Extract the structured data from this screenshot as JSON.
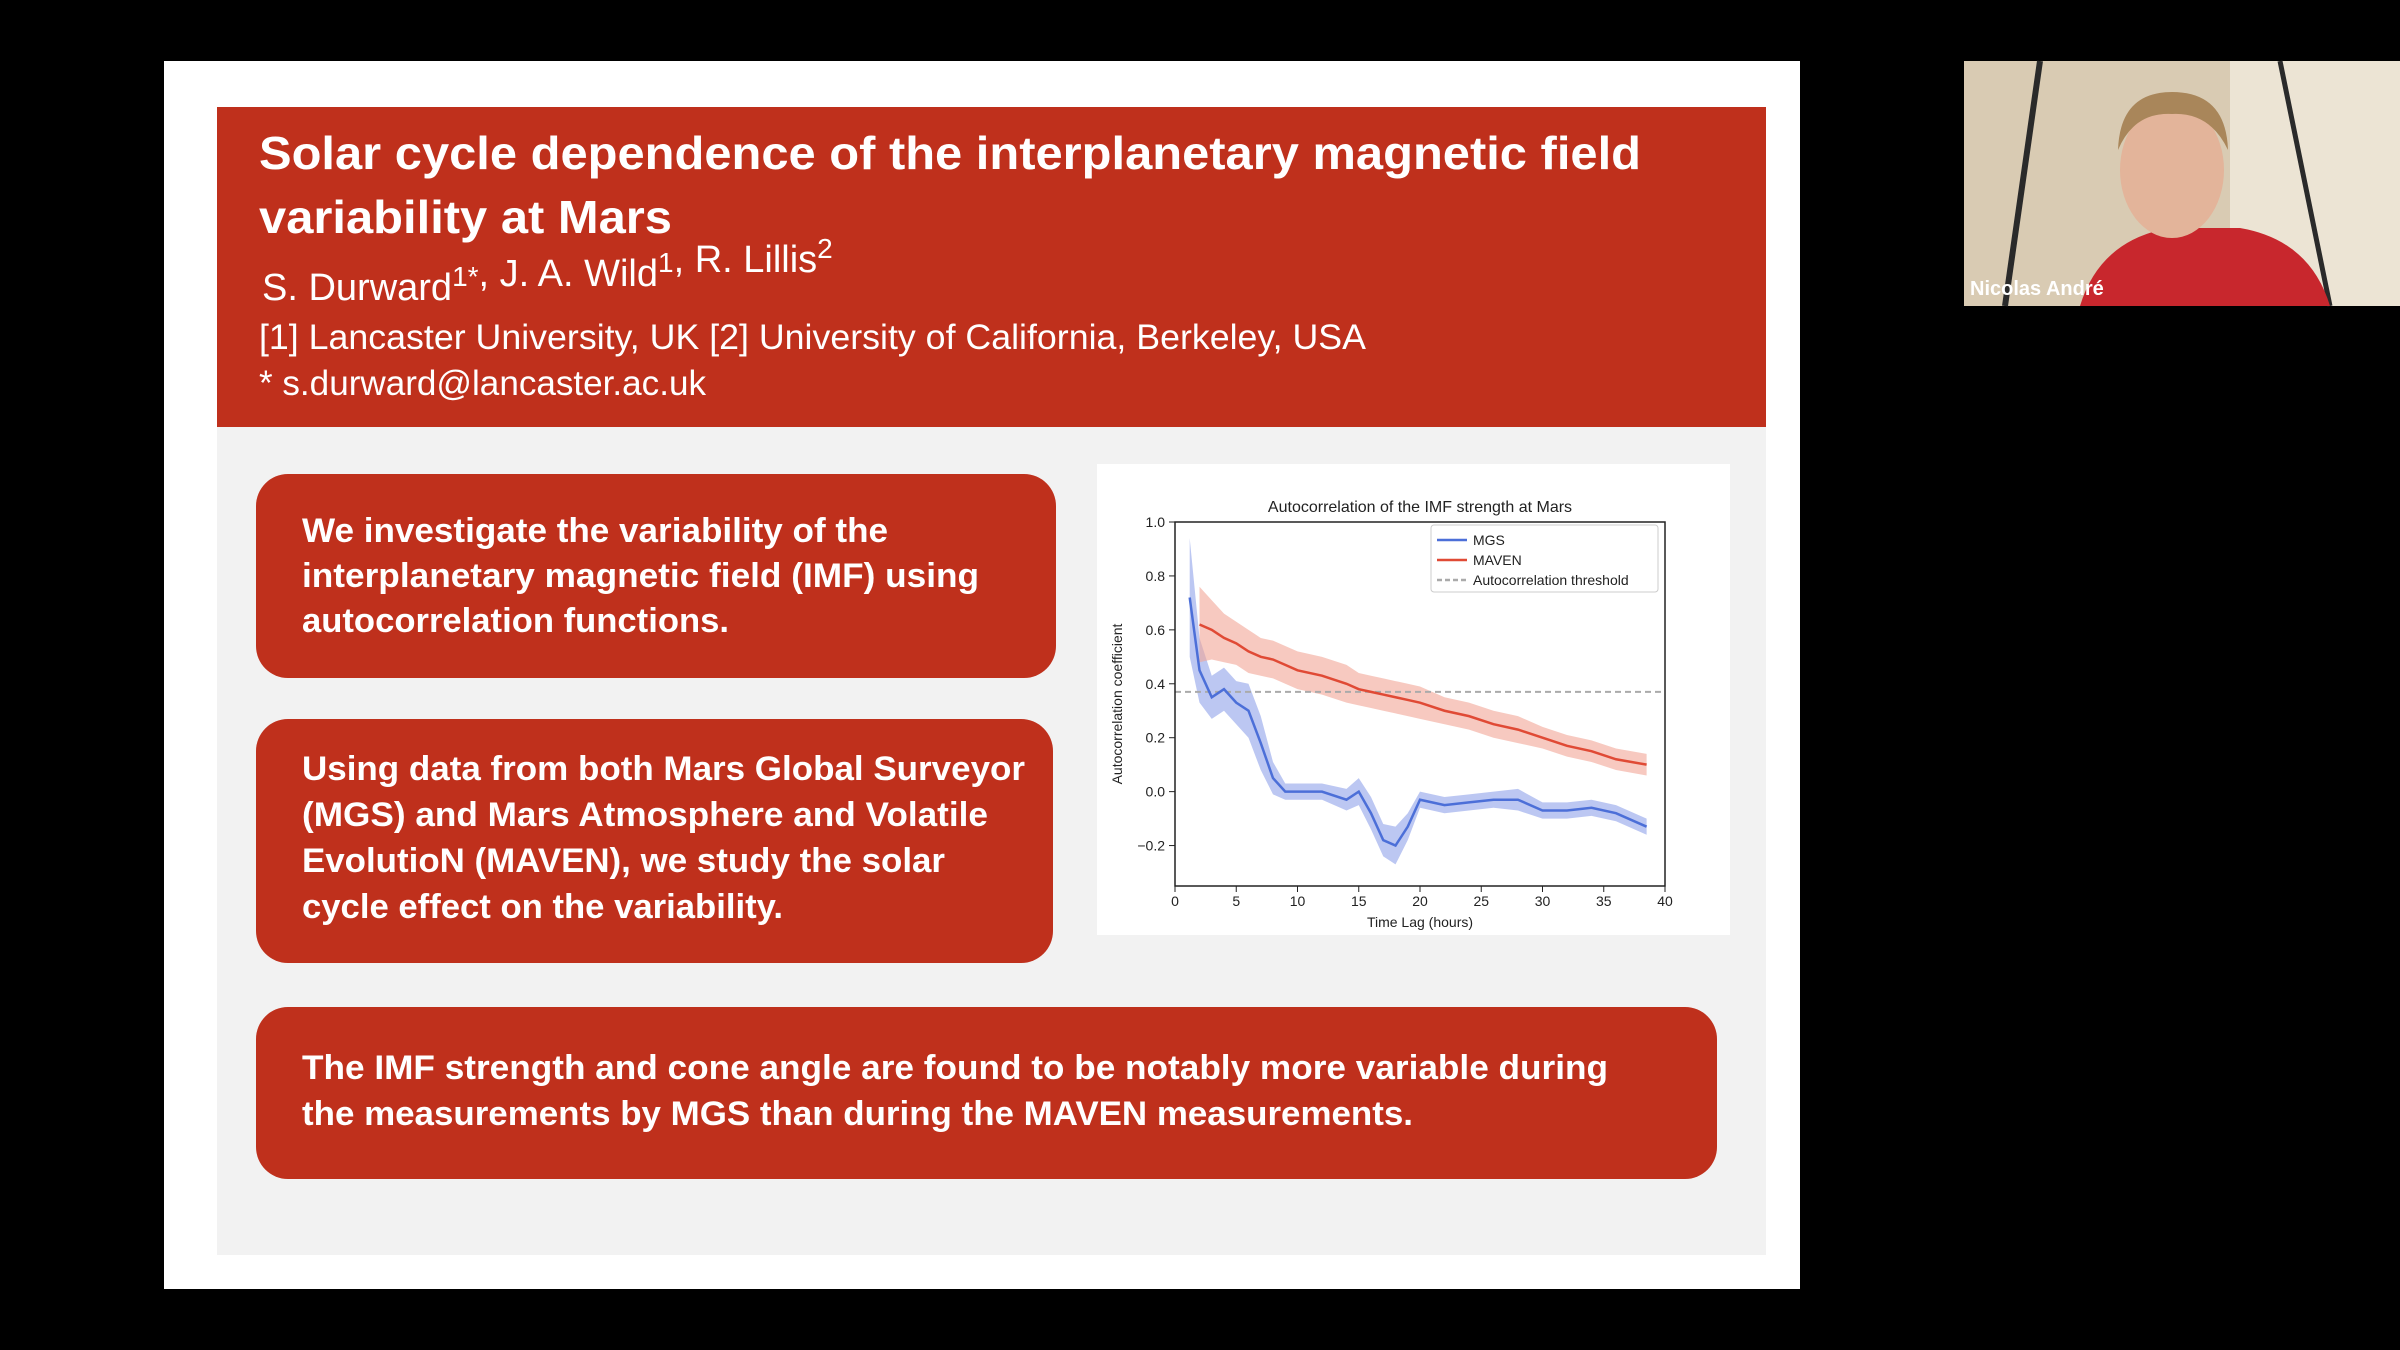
{
  "slide": {
    "title_lines": [
      "Solar cycle dependence of the interplanetary magnetic field",
      "variability at Mars"
    ],
    "authors": [
      {
        "name": "S. Durward",
        "sup": "1*"
      },
      {
        "name": ", J. A. Wild",
        "sup": "1"
      },
      {
        "name": ", R. Lillis",
        "sup": "2"
      }
    ],
    "affiliations": "[1] Lancaster University, UK  [2] University of California, Berkeley, USA",
    "email": "* s.durward@lancaster.ac.uk",
    "boxes": [
      {
        "lines": [
          "We investigate the variability of the",
          "interplanetary magnetic field (IMF) using",
          "autocorrelation functions."
        ]
      },
      {
        "lines": [
          "Using data from both Mars Global Surveyor",
          "(MGS) and Mars Atmosphere and Volatile",
          "EvolutioN (MAVEN), we study the solar",
          "cycle effect on the variability."
        ]
      },
      {
        "lines": [
          "The IMF strength and cone angle are found to be notably more variable during",
          "the measurements by MGS than during the MAVEN measurements."
        ]
      }
    ],
    "chart": {
      "type": "line",
      "title": "Autocorrelation of the IMF strength at Mars",
      "x_label": "Time Lag (hours)",
      "y_label": "Autocorrelation coefficient",
      "xlim": [
        0,
        40
      ],
      "ylim": [
        -0.35,
        1.0
      ],
      "xticks": [
        0,
        5,
        10,
        15,
        20,
        25,
        30,
        35,
        40
      ],
      "yticks": [
        {
          "value": -0.2,
          "label": "−0.2"
        },
        {
          "value": 0,
          "label": "0.0"
        },
        {
          "value": 0.2,
          "label": "0.2"
        },
        {
          "value": 0.4,
          "label": "0.4"
        },
        {
          "value": 0.6,
          "label": "0.6"
        },
        {
          "value": 0.8,
          "label": "0.8"
        },
        {
          "value": 1.0,
          "label": "1.0"
        }
      ],
      "x": [
        1.2,
        2,
        3,
        4,
        5,
        6,
        7,
        8,
        9,
        10,
        12,
        14,
        15,
        16,
        17,
        18,
        19,
        20,
        22,
        24,
        26,
        28,
        30,
        32,
        34,
        36,
        38.5
      ],
      "series": [
        {
          "name": "MGS",
          "color": "#4c6fd8",
          "band_color": "#8fa2ea",
          "values": [
            0.72,
            0.45,
            0.35,
            0.38,
            0.33,
            0.3,
            0.18,
            0.05,
            0.0,
            0.0,
            0.0,
            -0.03,
            0.0,
            -0.08,
            -0.18,
            -0.2,
            -0.13,
            -0.03,
            -0.05,
            -0.04,
            -0.03,
            -0.03,
            -0.07,
            -0.07,
            -0.06,
            -0.08,
            -0.13
          ],
          "errors": [
            0.22,
            0.12,
            0.08,
            0.08,
            0.08,
            0.1,
            0.1,
            0.06,
            0.03,
            0.03,
            0.03,
            0.04,
            0.05,
            0.06,
            0.06,
            0.07,
            0.05,
            0.03,
            0.03,
            0.03,
            0.03,
            0.04,
            0.03,
            0.03,
            0.03,
            0.03,
            0.03
          ]
        },
        {
          "name": "MAVEN",
          "color": "#e04a35",
          "band_color": "#f2a596",
          "values": [
            null,
            0.62,
            0.6,
            0.57,
            0.55,
            0.52,
            0.5,
            0.49,
            0.47,
            0.45,
            0.43,
            0.4,
            0.38,
            0.37,
            0.36,
            0.35,
            0.34,
            0.33,
            0.3,
            0.28,
            0.25,
            0.23,
            0.2,
            0.17,
            0.15,
            0.12,
            0.1
          ],
          "errors": [
            null,
            0.14,
            0.11,
            0.09,
            0.08,
            0.08,
            0.07,
            0.07,
            0.07,
            0.07,
            0.07,
            0.07,
            0.06,
            0.06,
            0.06,
            0.06,
            0.06,
            0.06,
            0.05,
            0.05,
            0.05,
            0.05,
            0.04,
            0.04,
            0.04,
            0.04,
            0.04
          ]
        }
      ],
      "threshold": {
        "name": "Autocorrelation threshold",
        "value": 0.37,
        "color": "#aaaaaa"
      },
      "legend": "upper right"
    }
  },
  "participant": {
    "name": "Nicolas André"
  }
}
